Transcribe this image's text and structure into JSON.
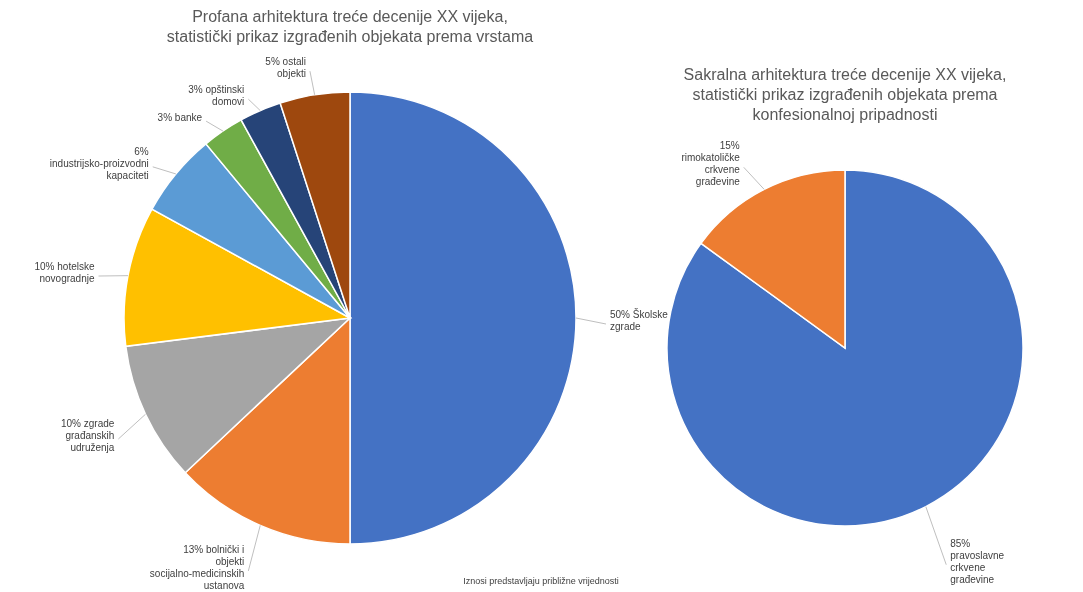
{
  "chart_data": [
    {
      "type": "pie",
      "title": "Profana arhitektura treće decenije XX vijeka, statistički prikaz izgrađenih objekata prema vrstama",
      "categories": [
        "Školske zgrade",
        "bolnički i objekti socijalno-medicinskih ustanova",
        "zgrade građanskih udruženja",
        "hotelske novogradnje",
        "industrijsko-proizvodni kapaciteti",
        "banke",
        "opštinski domovi",
        "ostali objekti"
      ],
      "values": [
        50,
        13,
        10,
        10,
        6,
        3,
        3,
        5
      ],
      "colors": [
        "#4472c4",
        "#ed7d31",
        "#a5a5a5",
        "#ffc000",
        "#5b9bd5",
        "#70ad47",
        "#264478",
        "#9e480e"
      ],
      "value_labels": [
        "50%",
        "13%",
        "10%",
        "10%",
        "6%",
        "3%",
        "3%",
        "5%"
      ],
      "annotations": [
        "Iznosi predstavljaju približne vrijednosti"
      ]
    },
    {
      "type": "pie",
      "title": "Sakralna arhitektura treće decenije XX vijeka, statistički prikaz izgrađenih objekata prema konfesionalnoj pripadnosti",
      "categories": [
        "pravoslavne crkvene građevine",
        "rimokatoličke crkvene građevine"
      ],
      "values": [
        85,
        15
      ],
      "colors": [
        "#4472c4",
        "#ed7d31"
      ],
      "value_labels": [
        "85%",
        "15%"
      ]
    }
  ]
}
